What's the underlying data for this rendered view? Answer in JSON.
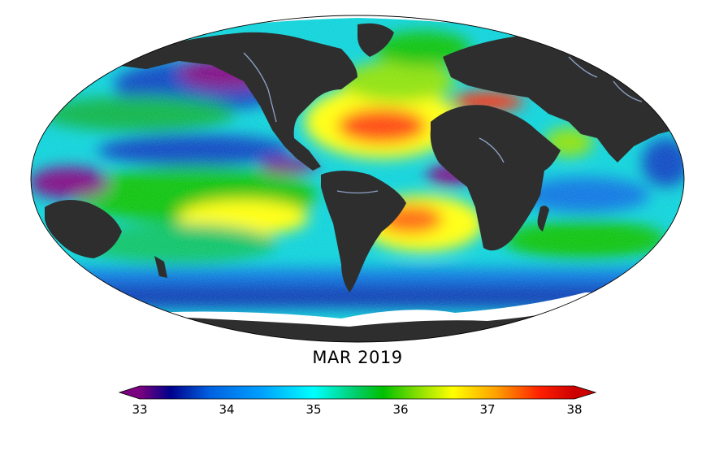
{
  "title": "MAR 2019",
  "projection": "mollweide",
  "colorbar": {
    "min": 33,
    "max": 38,
    "extend": "both",
    "ticks": [
      "33",
      "34",
      "35",
      "36",
      "37",
      "38"
    ],
    "stops": [
      {
        "value": 33.0,
        "color": "#7a007f"
      },
      {
        "value": 33.35,
        "color": "#00008b"
      },
      {
        "value": 33.8,
        "color": "#0060e0"
      },
      {
        "value": 34.4,
        "color": "#00a0ff"
      },
      {
        "value": 35.0,
        "color": "#00ffff"
      },
      {
        "value": 35.5,
        "color": "#00cc66"
      },
      {
        "value": 35.8,
        "color": "#00c000"
      },
      {
        "value": 36.2,
        "color": "#88e000"
      },
      {
        "value": 36.6,
        "color": "#ffff00"
      },
      {
        "value": 37.1,
        "color": "#ffa000"
      },
      {
        "value": 37.6,
        "color": "#ff2000"
      },
      {
        "value": 38.0,
        "color": "#cc0000"
      }
    ]
  },
  "colors": {
    "land": "#2e2e2e",
    "rivers": "#8fa3c8",
    "ice": "#ffffff",
    "ocean_base": "#00d8d8"
  }
}
